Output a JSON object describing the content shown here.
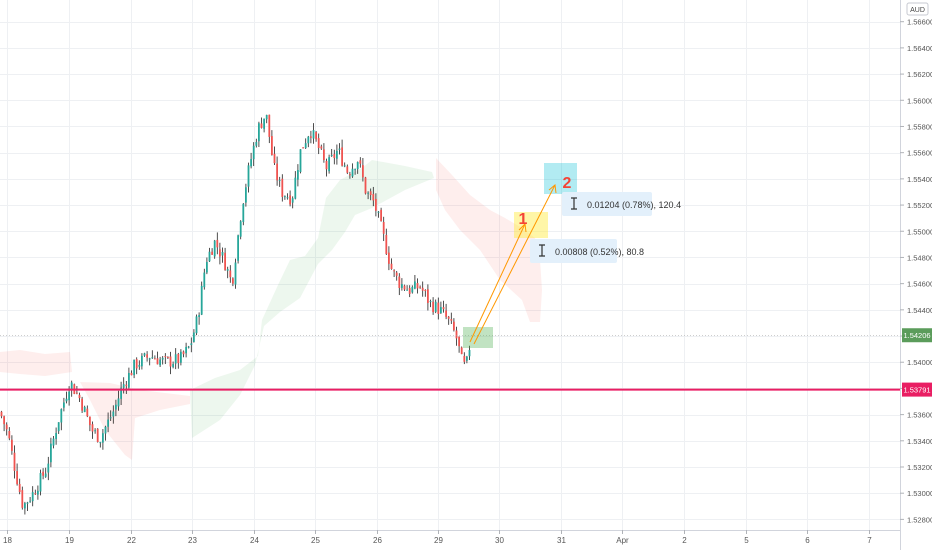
{
  "chart_data": {
    "type": "candlestick",
    "currency": "AUD",
    "y_ticks": [
      "1.56600",
      "1.56400",
      "1.56200",
      "1.56000",
      "1.55800",
      "1.55600",
      "1.55400",
      "1.55200",
      "1.55000",
      "1.54800",
      "1.54600",
      "1.54400",
      "1.54200",
      "1.54000",
      "1.53800",
      "1.53600",
      "1.53400",
      "1.53200",
      "1.53000",
      "1.52800"
    ],
    "ylim": [
      1.5275,
      1.5672
    ],
    "x_ticks": [
      "18",
      "19",
      "22",
      "23",
      "24",
      "25",
      "26",
      "29",
      "30",
      "31",
      "Apr",
      "2",
      "5",
      "6",
      "7"
    ],
    "current_price": "1.54206",
    "current_price_value": 1.54206,
    "horizontal_line": "1.53791",
    "horizontal_line_value": 1.53791,
    "grid": true,
    "colors": {
      "up": "#26a69a",
      "down": "#ef5350",
      "wick": "#222222",
      "hline": "#e91e63",
      "price_badge": "#5b9c5b",
      "target": "#ff9800",
      "label": "#f44336"
    },
    "annotations": [
      {
        "number": "1",
        "measure": "0.00808 (0.52%), 80.8"
      },
      {
        "number": "2",
        "measure": "0.01204 (0.78%), 120.4"
      }
    ]
  }
}
